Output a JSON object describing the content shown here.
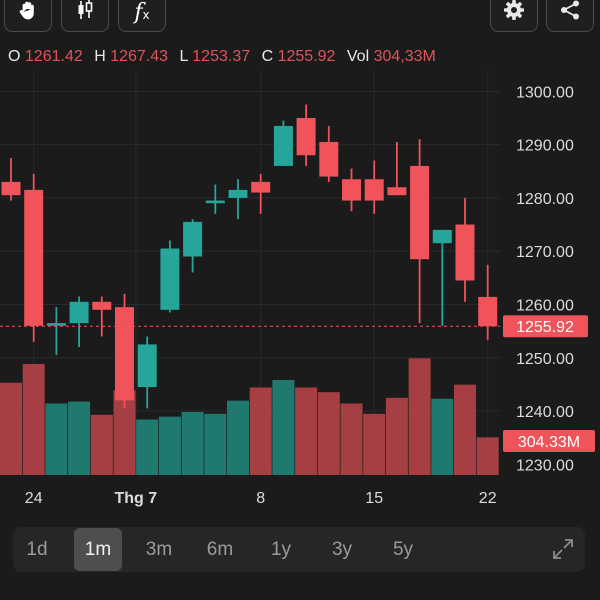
{
  "toolbar": {
    "left_icons": [
      "hand-pan-icon",
      "candlestick-icon",
      "function-fx-icon"
    ],
    "fx_label": "f",
    "fx_sub": "x",
    "right_icons": [
      "gear-icon",
      "share-icon"
    ]
  },
  "ohlc": {
    "o_label": "O",
    "o_value": "1261.42",
    "h_label": "H",
    "h_value": "1267.43",
    "l_label": "L",
    "l_value": "1253.37",
    "c_label": "C",
    "c_value": "1255.92",
    "vol_label": "Vol",
    "vol_value": "304,33M"
  },
  "timeframes": [
    {
      "label": "1d",
      "active": false
    },
    {
      "label": "1m",
      "active": true
    },
    {
      "label": "3m",
      "active": false
    },
    {
      "label": "6m",
      "active": false
    },
    {
      "label": "1y",
      "active": false
    },
    {
      "label": "3y",
      "active": false
    },
    {
      "label": "5y",
      "active": false
    }
  ],
  "colors": {
    "up": "#26a69a",
    "down": "#f0535a",
    "background": "#1b1b1c",
    "grid": "#2a2a2c"
  },
  "chart_data": {
    "type": "candlestick",
    "y_ticks": [
      "1300.00",
      "1290.00",
      "1280.00",
      "1270.00",
      "1260.00",
      "1250.00",
      "1240.00",
      "1230.00"
    ],
    "y_tick_values": [
      1300,
      1290,
      1280,
      1270,
      1260,
      1250,
      1240,
      1230
    ],
    "ylim": [
      1228,
      1304
    ],
    "x_tick_labels": [
      {
        "label": "24",
        "index": 1
      },
      {
        "label": "Thg 7",
        "index": 5.5
      },
      {
        "label": "8",
        "index": 11
      },
      {
        "label": "15",
        "index": 16
      },
      {
        "label": "22",
        "index": 21
      }
    ],
    "last_price_label": "1255.92",
    "last_price": 1255.92,
    "last_volume_label": "304.33M",
    "volume_ylim": [
      0,
      170
    ],
    "candles": [
      {
        "o": 1283.0,
        "h": 1287.5,
        "l": 1279.5,
        "c": 1280.5,
        "v": 98
      },
      {
        "o": 1281.5,
        "h": 1284.5,
        "l": 1253.0,
        "c": 1256.0,
        "v": 118
      },
      {
        "o": 1256.0,
        "h": 1259.5,
        "l": 1250.5,
        "c": 1256.5,
        "v": 76
      },
      {
        "o": 1256.5,
        "h": 1261.5,
        "l": 1252.0,
        "c": 1260.5,
        "v": 78
      },
      {
        "o": 1260.5,
        "h": 1261.5,
        "l": 1254.0,
        "c": 1259.0,
        "v": 64
      },
      {
        "o": 1259.5,
        "h": 1262.0,
        "l": 1240.5,
        "c": 1242.0,
        "v": 90
      },
      {
        "o": 1244.5,
        "h": 1254.0,
        "l": 1240.5,
        "c": 1252.5,
        "v": 59
      },
      {
        "o": 1259.0,
        "h": 1272.0,
        "l": 1258.5,
        "c": 1270.5,
        "v": 62
      },
      {
        "o": 1269.0,
        "h": 1276.0,
        "l": 1266.0,
        "c": 1275.5,
        "v": 67
      },
      {
        "o": 1279.0,
        "h": 1282.5,
        "l": 1277.0,
        "c": 1279.5,
        "v": 65
      },
      {
        "o": 1280.0,
        "h": 1283.5,
        "l": 1276.0,
        "c": 1281.5,
        "v": 79
      },
      {
        "o": 1283.0,
        "h": 1284.5,
        "l": 1277.0,
        "c": 1281.0,
        "v": 93
      },
      {
        "o": 1286.0,
        "h": 1294.5,
        "l": 1286.0,
        "c": 1293.5,
        "v": 101
      },
      {
        "o": 1295.0,
        "h": 1297.5,
        "l": 1286.0,
        "c": 1288.0,
        "v": 93
      },
      {
        "o": 1290.5,
        "h": 1293.5,
        "l": 1283.0,
        "c": 1284.0,
        "v": 88
      },
      {
        "o": 1283.5,
        "h": 1285.5,
        "l": 1277.5,
        "c": 1279.5,
        "v": 76
      },
      {
        "o": 1283.5,
        "h": 1287.0,
        "l": 1277.0,
        "c": 1279.5,
        "v": 65
      },
      {
        "o": 1282.0,
        "h": 1290.5,
        "l": 1280.5,
        "c": 1280.5,
        "v": 82
      },
      {
        "o": 1286.0,
        "h": 1291.0,
        "l": 1256.5,
        "c": 1268.5,
        "v": 124
      },
      {
        "o": 1271.5,
        "h": 1274.0,
        "l": 1256.0,
        "c": 1274.0,
        "v": 81
      },
      {
        "o": 1275.0,
        "h": 1280.0,
        "l": 1260.5,
        "c": 1264.5,
        "v": 96
      },
      {
        "o": 1261.42,
        "h": 1267.43,
        "l": 1253.37,
        "c": 1255.92,
        "v": 40
      }
    ]
  }
}
